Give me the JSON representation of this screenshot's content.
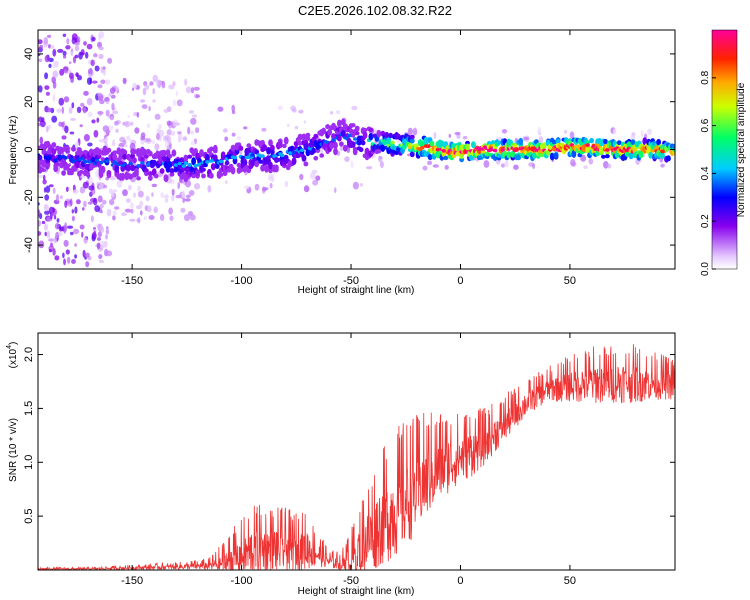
{
  "chart_data": [
    {
      "type": "heatmap",
      "title": "C2E5.2026.102.08.32.R22",
      "xlabel": "Height of straight line (km)",
      "ylabel": "Frequency (Hz)",
      "xlim": [
        -193,
        98
      ],
      "ylim": [
        -50,
        50
      ],
      "xticks": [
        -150,
        -100,
        -50,
        0,
        50
      ],
      "yticks": [
        -40,
        -20,
        0,
        20,
        40
      ],
      "ridge": {
        "x": [
          -190,
          -170,
          -150,
          -130,
          -110,
          -100,
          -90,
          -80,
          -70,
          -60,
          -55,
          -50,
          -45,
          -40,
          -35,
          -30,
          -25,
          -20,
          -15,
          -10,
          -5,
          0,
          10,
          20,
          30,
          40,
          50,
          60,
          70,
          80,
          90,
          97
        ],
        "freq": [
          -3,
          -5,
          -6,
          -7,
          -5,
          -3,
          -3,
          -2,
          0,
          4,
          6,
          5,
          3,
          3,
          3,
          2,
          2,
          1,
          1,
          0,
          -1,
          -1,
          0,
          0,
          0,
          0,
          1,
          1,
          0,
          0,
          0,
          -1
        ],
        "amplitude": [
          0.25,
          0.3,
          0.3,
          0.35,
          0.35,
          0.35,
          0.35,
          0.35,
          0.35,
          0.3,
          0.3,
          0.3,
          0.35,
          0.45,
          0.55,
          0.6,
          0.65,
          0.75,
          0.85,
          0.9,
          0.95,
          0.95,
          0.95,
          0.95,
          0.95,
          0.95,
          0.9,
          0.9,
          0.9,
          0.9,
          0.85,
          0.8
        ]
      },
      "colorbar": {
        "label": "Normalized spectral amplitude",
        "range": [
          0.0,
          1.0
        ],
        "ticks": [
          "0.0",
          "0.2",
          "0.4",
          "0.6",
          "0.8"
        ]
      }
    },
    {
      "type": "line",
      "xlabel": "Height of straight line (km)",
      "ylabel": "SNR (10 * v/v)",
      "scale_label": "(x10",
      "scale_exp": "4",
      "xlim": [
        -193,
        98
      ],
      "ylim": [
        0,
        2.2
      ],
      "xticks": [
        -150,
        -100,
        -50,
        0,
        50
      ],
      "yticks": [
        "0.5",
        "1.0",
        "1.5",
        "2.0"
      ],
      "color": "#ee3333",
      "envelope": {
        "x": [
          -193,
          -170,
          -150,
          -130,
          -115,
          -110,
          -105,
          -100,
          -95,
          -90,
          -85,
          -80,
          -75,
          -70,
          -65,
          -60,
          -55,
          -50,
          -45,
          -40,
          -35,
          -30,
          -25,
          -20,
          -15,
          -10,
          -5,
          0,
          5,
          10,
          15,
          20,
          25,
          30,
          35,
          40,
          50,
          60,
          70,
          80,
          90,
          98
        ],
        "base": [
          0.01,
          0.01,
          0.02,
          0.03,
          0.04,
          0.06,
          0.09,
          0.13,
          0.18,
          0.2,
          0.2,
          0.19,
          0.19,
          0.2,
          0.15,
          0.08,
          0.06,
          0.1,
          0.22,
          0.35,
          0.45,
          0.55,
          0.65,
          0.75,
          0.85,
          0.95,
          1.0,
          1.05,
          1.1,
          1.15,
          1.25,
          1.35,
          1.45,
          1.55,
          1.62,
          1.68,
          1.72,
          1.74,
          1.75,
          1.75,
          1.74,
          1.72
        ],
        "amp": [
          0.01,
          0.01,
          0.02,
          0.03,
          0.05,
          0.12,
          0.2,
          0.25,
          0.3,
          0.3,
          0.28,
          0.28,
          0.25,
          0.25,
          0.15,
          0.08,
          0.08,
          0.2,
          0.35,
          0.45,
          0.5,
          0.55,
          0.55,
          0.5,
          0.45,
          0.4,
          0.35,
          0.3,
          0.3,
          0.25,
          0.22,
          0.2,
          0.18,
          0.15,
          0.15,
          0.15,
          0.2,
          0.25,
          0.25,
          0.25,
          0.2,
          0.18
        ]
      }
    }
  ]
}
